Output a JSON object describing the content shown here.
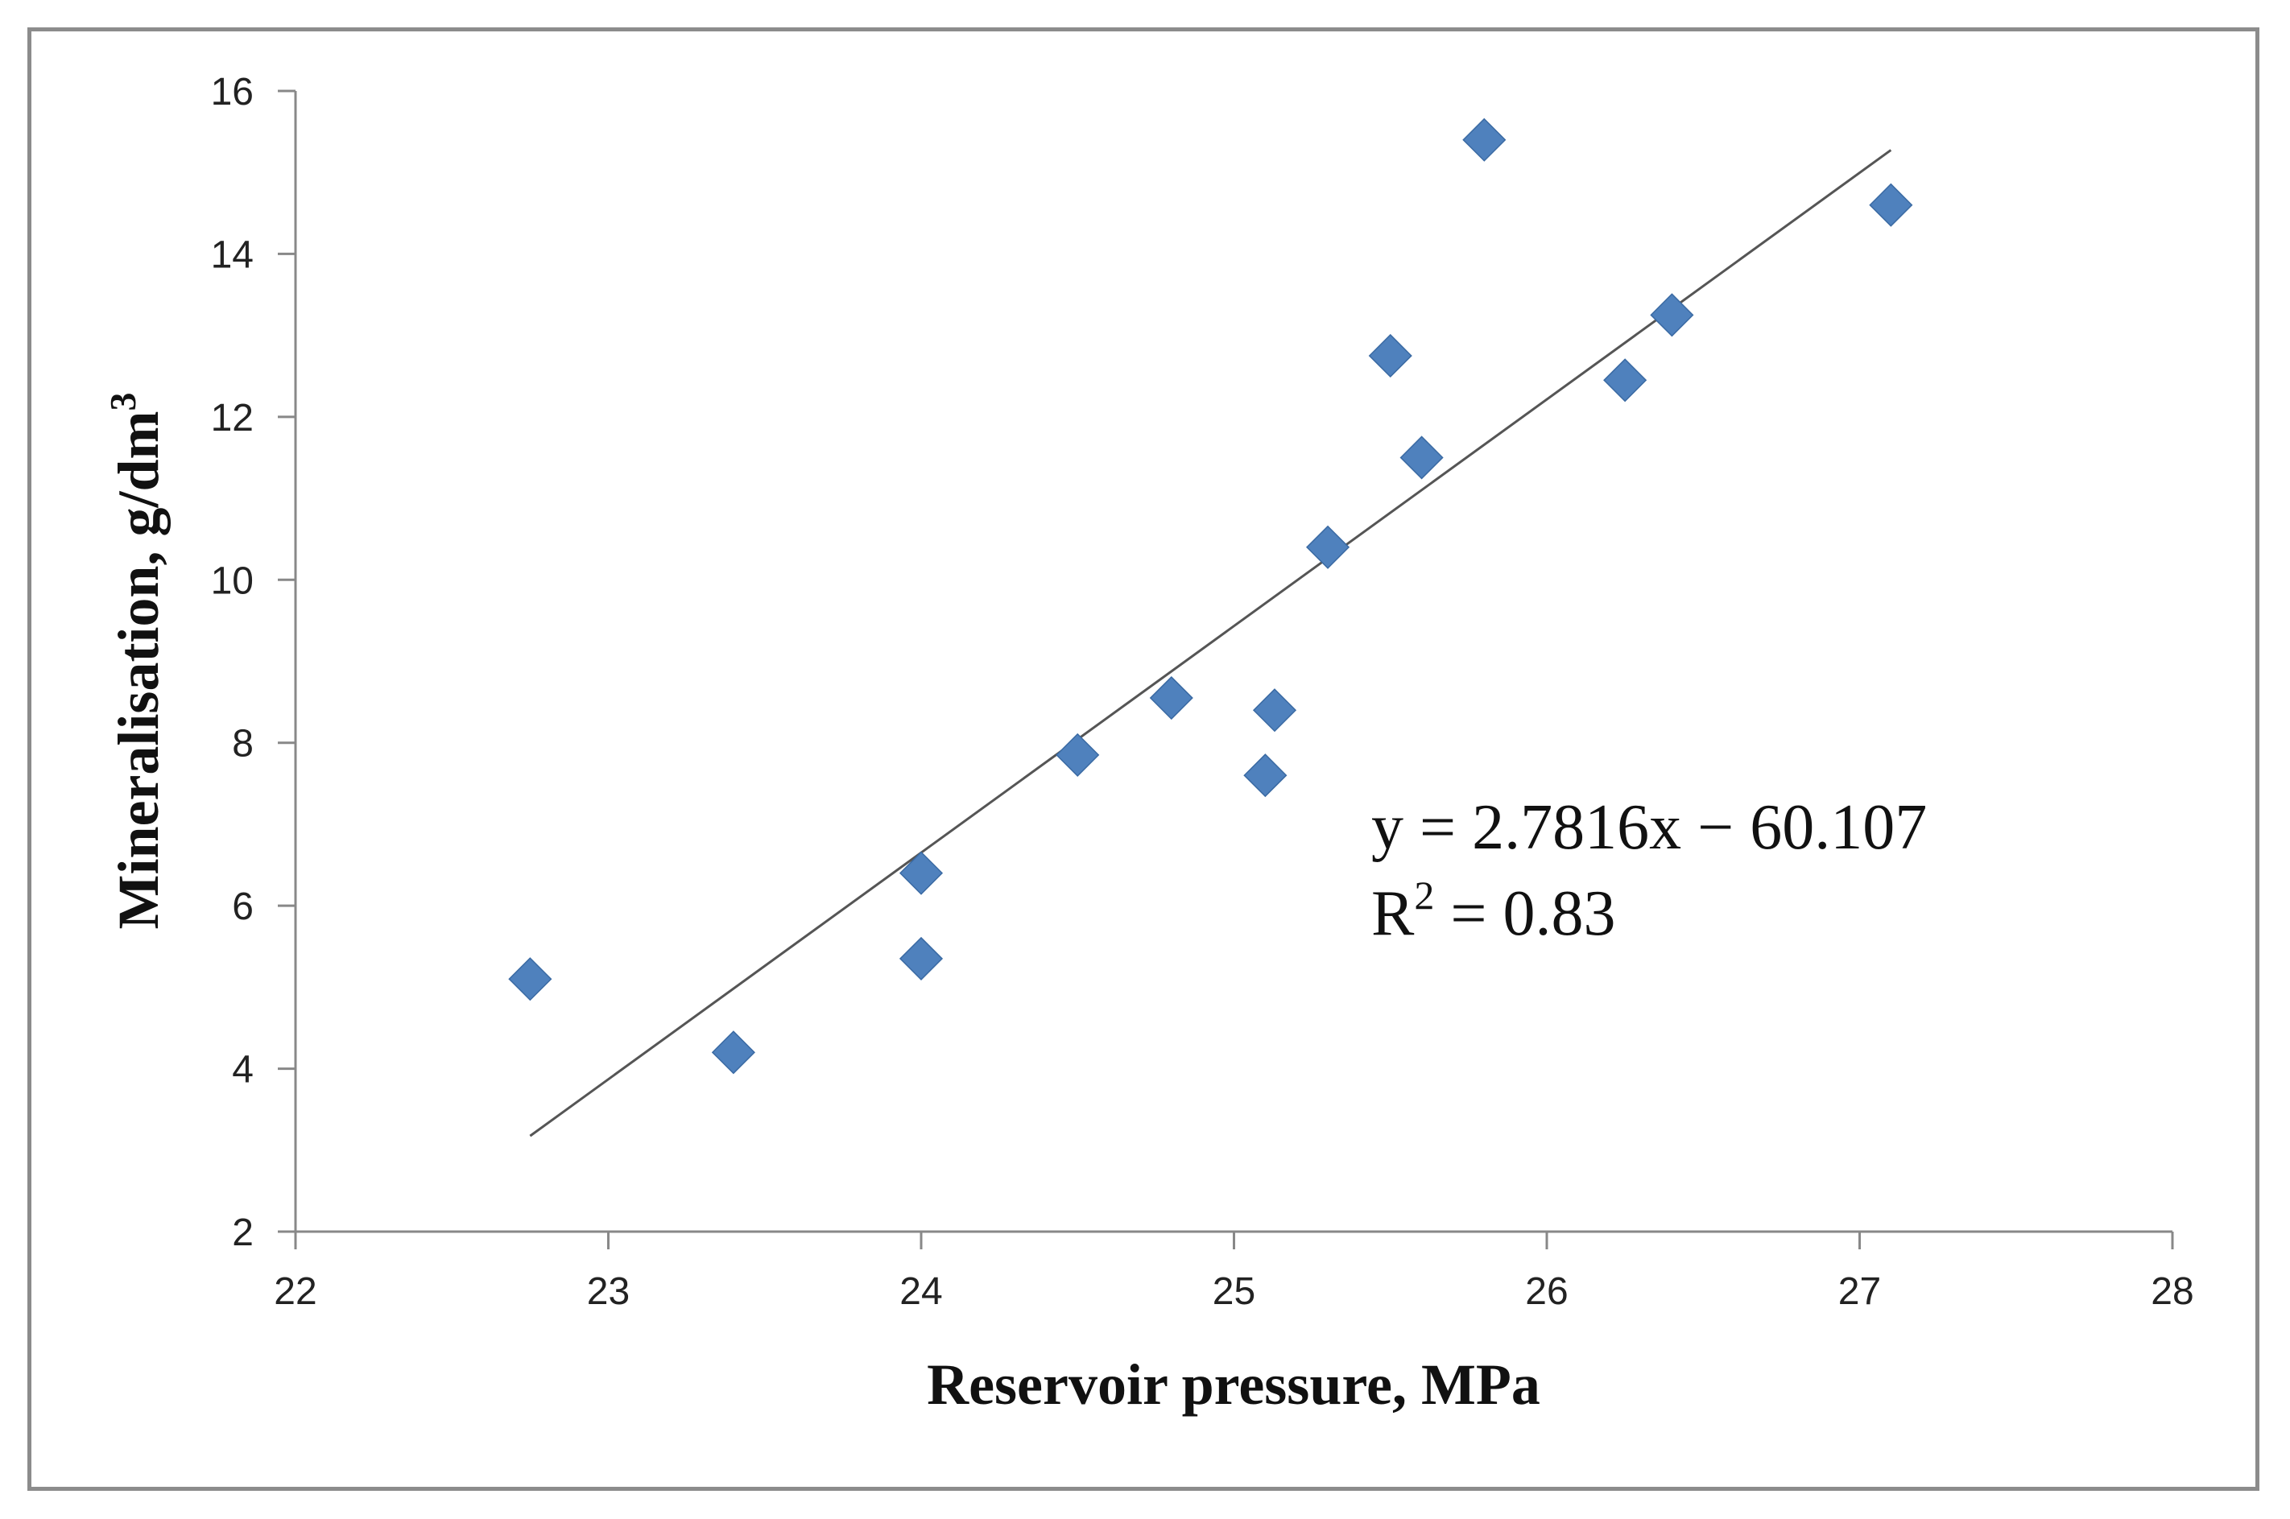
{
  "chart_data": {
    "type": "scatter",
    "title": "",
    "xlabel": "Reservoir pressure, MPa",
    "ylabel": {
      "text": "Mineralisation, g/dm",
      "superscript": "3"
    },
    "xlim": [
      22,
      28
    ],
    "ylim": [
      2,
      16
    ],
    "x_ticks": [
      22,
      23,
      24,
      25,
      26,
      27,
      28
    ],
    "y_ticks": [
      2,
      4,
      6,
      8,
      10,
      12,
      14,
      16
    ],
    "grid": false,
    "legend": "none",
    "marker": "diamond",
    "marker_color": "#4f81bd",
    "series": [
      {
        "name": "Mineralisation",
        "points": [
          {
            "x": 22.75,
            "y": 5.1
          },
          {
            "x": 23.4,
            "y": 4.2
          },
          {
            "x": 24.0,
            "y": 6.4
          },
          {
            "x": 24.0,
            "y": 5.35
          },
          {
            "x": 24.5,
            "y": 7.85
          },
          {
            "x": 24.8,
            "y": 8.55
          },
          {
            "x": 25.1,
            "y": 7.6
          },
          {
            "x": 25.13,
            "y": 8.4
          },
          {
            "x": 25.3,
            "y": 10.4
          },
          {
            "x": 25.5,
            "y": 12.75
          },
          {
            "x": 25.6,
            "y": 11.5
          },
          {
            "x": 25.8,
            "y": 15.4
          },
          {
            "x": 26.25,
            "y": 12.45
          },
          {
            "x": 26.4,
            "y": 13.25
          },
          {
            "x": 27.1,
            "y": 14.6
          }
        ]
      }
    ],
    "trendline": {
      "type": "linear",
      "slope": 2.7816,
      "intercept": -60.107,
      "x_range": [
        22.75,
        27.1
      ],
      "color": "#555555"
    },
    "annotations": {
      "equation": "y = 2.7816x − 60.107",
      "r_squared_label": "R",
      "r_squared_superscript": "2",
      "r_squared_value": " = 0.83"
    }
  }
}
